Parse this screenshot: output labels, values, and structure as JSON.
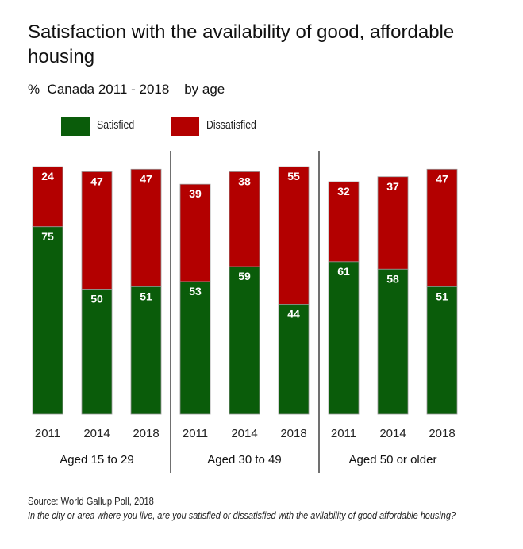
{
  "chart_data": {
    "type": "bar",
    "stacked": true,
    "title": "Satisfaction with the availability of good, affordable housing",
    "subtitle": "%  Canada 2011 - 2018    by age",
    "colors": {
      "Satisfied": "#0a5c0a",
      "Dissatisfied": "#b30000"
    },
    "legend": {
      "position": "top-left",
      "entries": [
        "Satisfied",
        "Dissatisfied"
      ]
    },
    "groups": [
      {
        "label": "Aged 15 to 29",
        "categories": [
          "2011",
          "2014",
          "2018"
        ],
        "satisfied": [
          75,
          50,
          51
        ],
        "dissatisfied": [
          24,
          47,
          47
        ]
      },
      {
        "label": "Aged 30 to 49",
        "categories": [
          "2011",
          "2014",
          "2018"
        ],
        "satisfied": [
          53,
          59,
          44
        ],
        "dissatisfied": [
          39,
          38,
          55
        ]
      },
      {
        "label": "Aged 50 or older",
        "categories": [
          "2011",
          "2014",
          "2018"
        ],
        "satisfied": [
          61,
          58,
          51
        ],
        "dissatisfied": [
          32,
          37,
          47
        ]
      }
    ],
    "ylim": [
      0,
      100
    ],
    "grid": false
  },
  "source": "Source: World Gallup Poll, 2018",
  "question": "In the city or area where you live, are you satisfied or dissatisfied with the avilability of good affordable housing?"
}
